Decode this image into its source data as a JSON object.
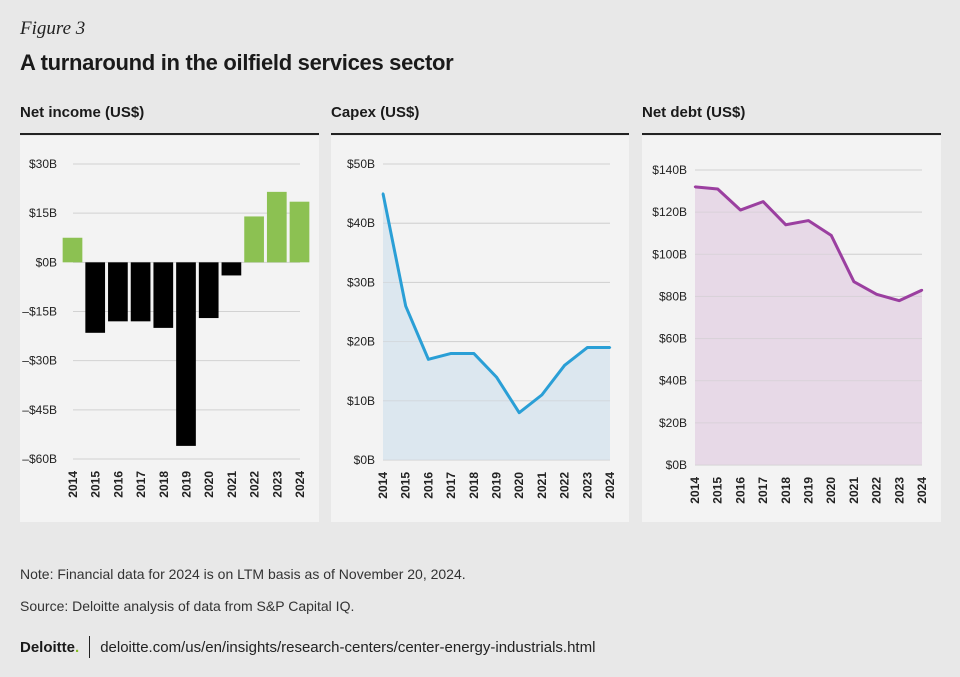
{
  "figure_label": "Figure 3",
  "title": "A turnaround in the oilfield services sector",
  "note": "Note: Financial data for 2024 is on LTM basis as of November 20, 2024.",
  "source": "Source: Deloitte analysis of data from S&P Capital IQ.",
  "footer": {
    "logo_text": "Deloitte",
    "logo_dot": ".",
    "url": "deloitte.com/us/en/insights/research-centers/center-energy-industrials.html"
  },
  "colors": {
    "positive_bar": "#8cc152",
    "negative_bar": "#000000",
    "capex_line": "#2a9fd6",
    "capex_fill": "#d9e6ee",
    "debt_line": "#9b3fa0",
    "debt_fill": "#e6d6e6"
  },
  "chart_data": [
    {
      "type": "bar",
      "title": "Net income (US$)",
      "categories": [
        "2014",
        "2015",
        "2016",
        "2017",
        "2018",
        "2019",
        "2020",
        "2021",
        "2022",
        "2023",
        "2024"
      ],
      "values": [
        7.5,
        -21.5,
        -18,
        -18,
        -20,
        -56,
        -17,
        -4,
        14,
        21.5,
        18.5
      ],
      "ylim": [
        -60,
        30
      ],
      "yticks": [
        30,
        15,
        0,
        -15,
        -30,
        -45,
        -60
      ],
      "ytick_labels": [
        "$30B",
        "$15B",
        "$0B",
        "–$15B",
        "–$30B",
        "–$45B",
        "–$60B"
      ]
    },
    {
      "type": "area",
      "title": "Capex (US$)",
      "categories": [
        "2014",
        "2015",
        "2016",
        "2017",
        "2018",
        "2019",
        "2020",
        "2021",
        "2022",
        "2023",
        "2024"
      ],
      "values": [
        45,
        26,
        17,
        18,
        18,
        14,
        8,
        11,
        16,
        19,
        19
      ],
      "ylim": [
        0,
        50
      ],
      "yticks": [
        50,
        40,
        30,
        20,
        10,
        0
      ],
      "ytick_labels": [
        "$50B",
        "$40B",
        "$30B",
        "$20B",
        "$10B",
        "$0B"
      ]
    },
    {
      "type": "area",
      "title": "Net debt (US$)",
      "categories": [
        "2014",
        "2015",
        "2016",
        "2017",
        "2018",
        "2019",
        "2020",
        "2021",
        "2022",
        "2023",
        "2024"
      ],
      "values": [
        132,
        131,
        121,
        125,
        114,
        116,
        109,
        87,
        81,
        78,
        83
      ],
      "ylim": [
        0,
        140
      ],
      "yticks": [
        140,
        120,
        100,
        80,
        60,
        40,
        20,
        0
      ],
      "ytick_labels": [
        "$140B",
        "$120B",
        "$100B",
        "$80B",
        "$60B",
        "$40B",
        "$20B",
        "$0B"
      ]
    }
  ]
}
